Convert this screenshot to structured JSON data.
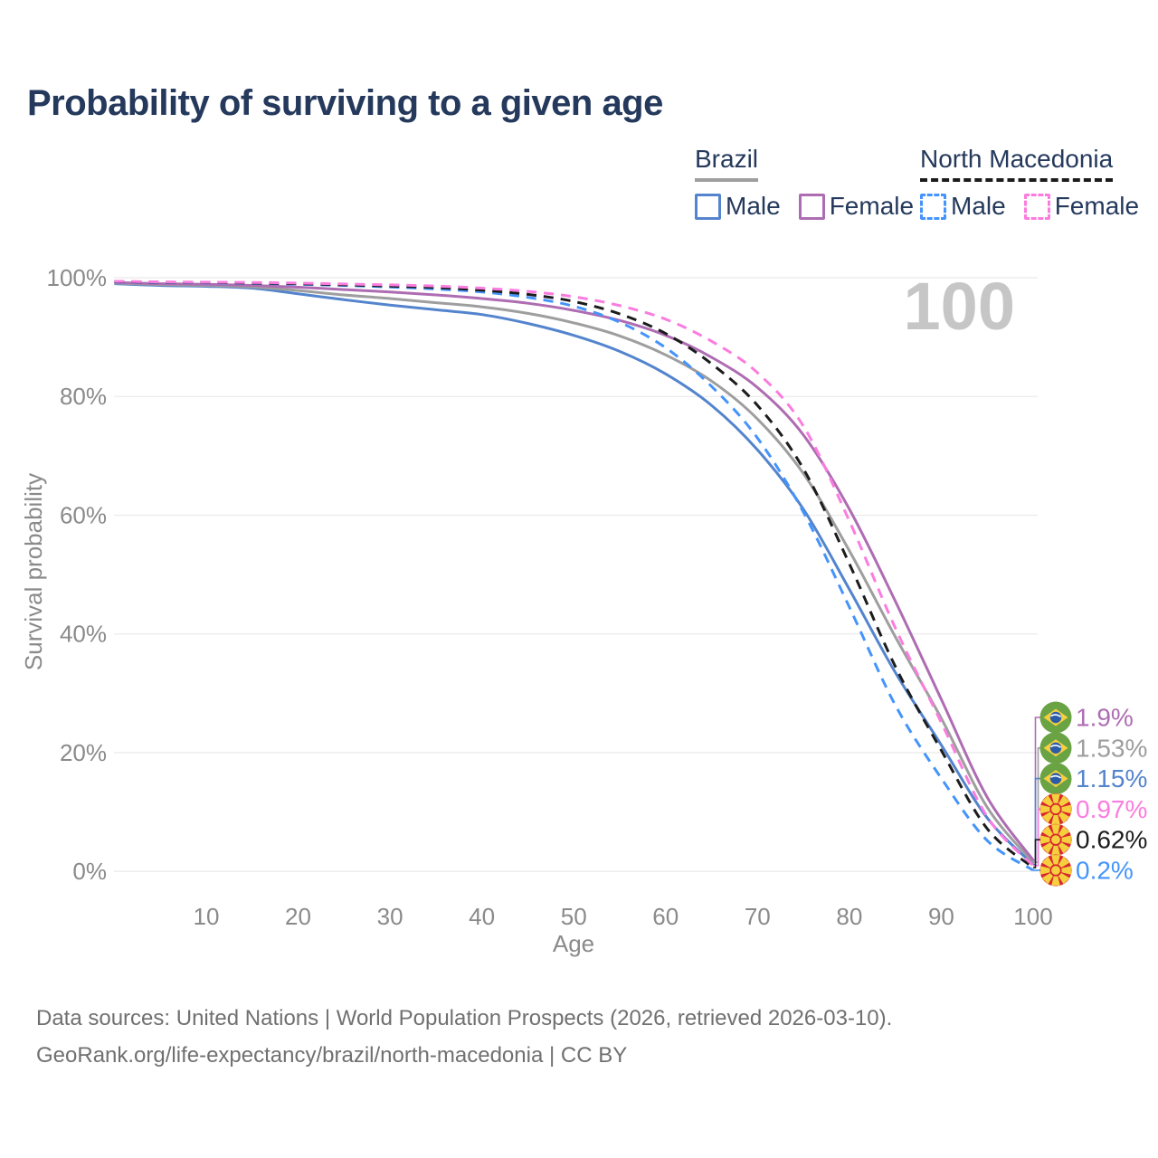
{
  "title": "Probability of surviving to a given age",
  "watermark": "100",
  "legend": {
    "groups": [
      {
        "label": "Brazil",
        "style": "solid",
        "underline_color": "#9e9e9e",
        "items": [
          {
            "label": "Male",
            "color": "#5384cd"
          },
          {
            "label": "Female",
            "color": "#ae6cb2"
          }
        ]
      },
      {
        "label": "North Macedonia",
        "style": "dashed",
        "underline_color": "#1c1c1c",
        "items": [
          {
            "label": "Male",
            "color": "#4494fb"
          },
          {
            "label": "Female",
            "color": "#fb7cdf"
          }
        ]
      }
    ]
  },
  "chart_data": {
    "type": "line",
    "title": "Probability of surviving to a given age",
    "xlabel": "Age",
    "ylabel": "Survival probability",
    "xlim": [
      0,
      100
    ],
    "ylim": [
      0,
      100
    ],
    "grid": "horizontal",
    "x_ticks": [
      10,
      20,
      30,
      40,
      50,
      60,
      70,
      80,
      90,
      100
    ],
    "y_ticks": [
      "0%",
      "20%",
      "40%",
      "60%",
      "80%",
      "100%"
    ],
    "y_tick_values": [
      0,
      20,
      40,
      60,
      80,
      100
    ],
    "x": [
      0,
      5,
      10,
      15,
      20,
      25,
      30,
      35,
      40,
      45,
      50,
      55,
      60,
      65,
      70,
      75,
      80,
      85,
      90,
      95,
      100
    ],
    "series": [
      {
        "name": "Brazil Male",
        "country": "Brazil",
        "sex": "Male",
        "color": "#5384cd",
        "style": "solid",
        "end_label": "1.15%",
        "values": [
          99.0,
          98.7,
          98.55,
          98.25,
          97.3,
          96.3,
          95.4,
          94.6,
          93.8,
          92.3,
          90.3,
          87.6,
          83.8,
          78.5,
          71.0,
          61.0,
          47.5,
          33.5,
          21.3,
          9.0,
          1.15
        ]
      },
      {
        "name": "Brazil Both sexes",
        "country": "Brazil",
        "sex": "Both",
        "color": "#9e9e9e",
        "style": "solid",
        "end_label": "1.53%",
        "values": [
          99.1,
          98.85,
          98.7,
          98.45,
          97.85,
          97.1,
          96.5,
          95.8,
          95.1,
          94.0,
          92.4,
          90.2,
          87.0,
          82.6,
          76.2,
          67.0,
          54.0,
          39.5,
          25.8,
          10.8,
          1.53
        ]
      },
      {
        "name": "Brazil Female",
        "country": "Brazil",
        "sex": "Female",
        "color": "#ae6cb2",
        "style": "solid",
        "end_label": "1.9%",
        "values": [
          99.2,
          99.0,
          98.9,
          98.7,
          98.4,
          98.0,
          97.6,
          97.1,
          96.5,
          95.7,
          94.5,
          92.8,
          90.3,
          86.6,
          81.5,
          73.5,
          61.0,
          45.5,
          29.0,
          12.5,
          1.9
        ]
      },
      {
        "name": "North Macedonia Male",
        "country": "North Macedonia",
        "sex": "Male",
        "color": "#4494fb",
        "style": "dashed",
        "end_label": "0.2%",
        "values": [
          99.3,
          99.2,
          99.15,
          99.05,
          98.9,
          98.7,
          98.45,
          98.1,
          97.6,
          96.7,
          95.2,
          92.5,
          88.2,
          81.7,
          73.0,
          60.5,
          44.5,
          28.0,
          15.7,
          5.2,
          0.2
        ]
      },
      {
        "name": "North Macedonia Both sexes",
        "country": "North Macedonia",
        "sex": "Both",
        "color": "#1c1c1c",
        "style": "dashed",
        "end_label": "0.62%",
        "values": [
          99.35,
          99.25,
          99.2,
          99.1,
          99.0,
          98.8,
          98.6,
          98.35,
          97.9,
          97.2,
          96.0,
          93.9,
          90.6,
          85.5,
          78.5,
          67.8,
          51.8,
          34.5,
          20.4,
          7.2,
          0.62
        ]
      },
      {
        "name": "North Macedonia Female",
        "country": "North Macedonia",
        "sex": "Female",
        "color": "#fb7cdf",
        "style": "dashed",
        "end_label": "0.97%",
        "values": [
          99.4,
          99.3,
          99.25,
          99.2,
          99.1,
          98.95,
          98.8,
          98.6,
          98.25,
          97.7,
          96.8,
          95.3,
          93.0,
          89.3,
          84.0,
          75.0,
          59.0,
          41.0,
          25.1,
          9.2,
          0.97
        ]
      }
    ],
    "flag_colors": {
      "brazil_green": "#6aa344",
      "brazil_yellow": "#f5cf3e",
      "brazil_blue": "#2b5ca8",
      "nm_red": "#d7282f",
      "nm_yellow": "#f5cf3e"
    },
    "axis_color": "#8a8a8a",
    "grid_color": "#ebebeb",
    "watermark_color": "#c6c6c6"
  },
  "footer": {
    "line1": "Data sources: United Nations | World Population Prospects (2026, retrieved 2026-03-10).",
    "line2": "GeoRank.org/life-expectancy/brazil/north-macedonia | CC BY"
  }
}
